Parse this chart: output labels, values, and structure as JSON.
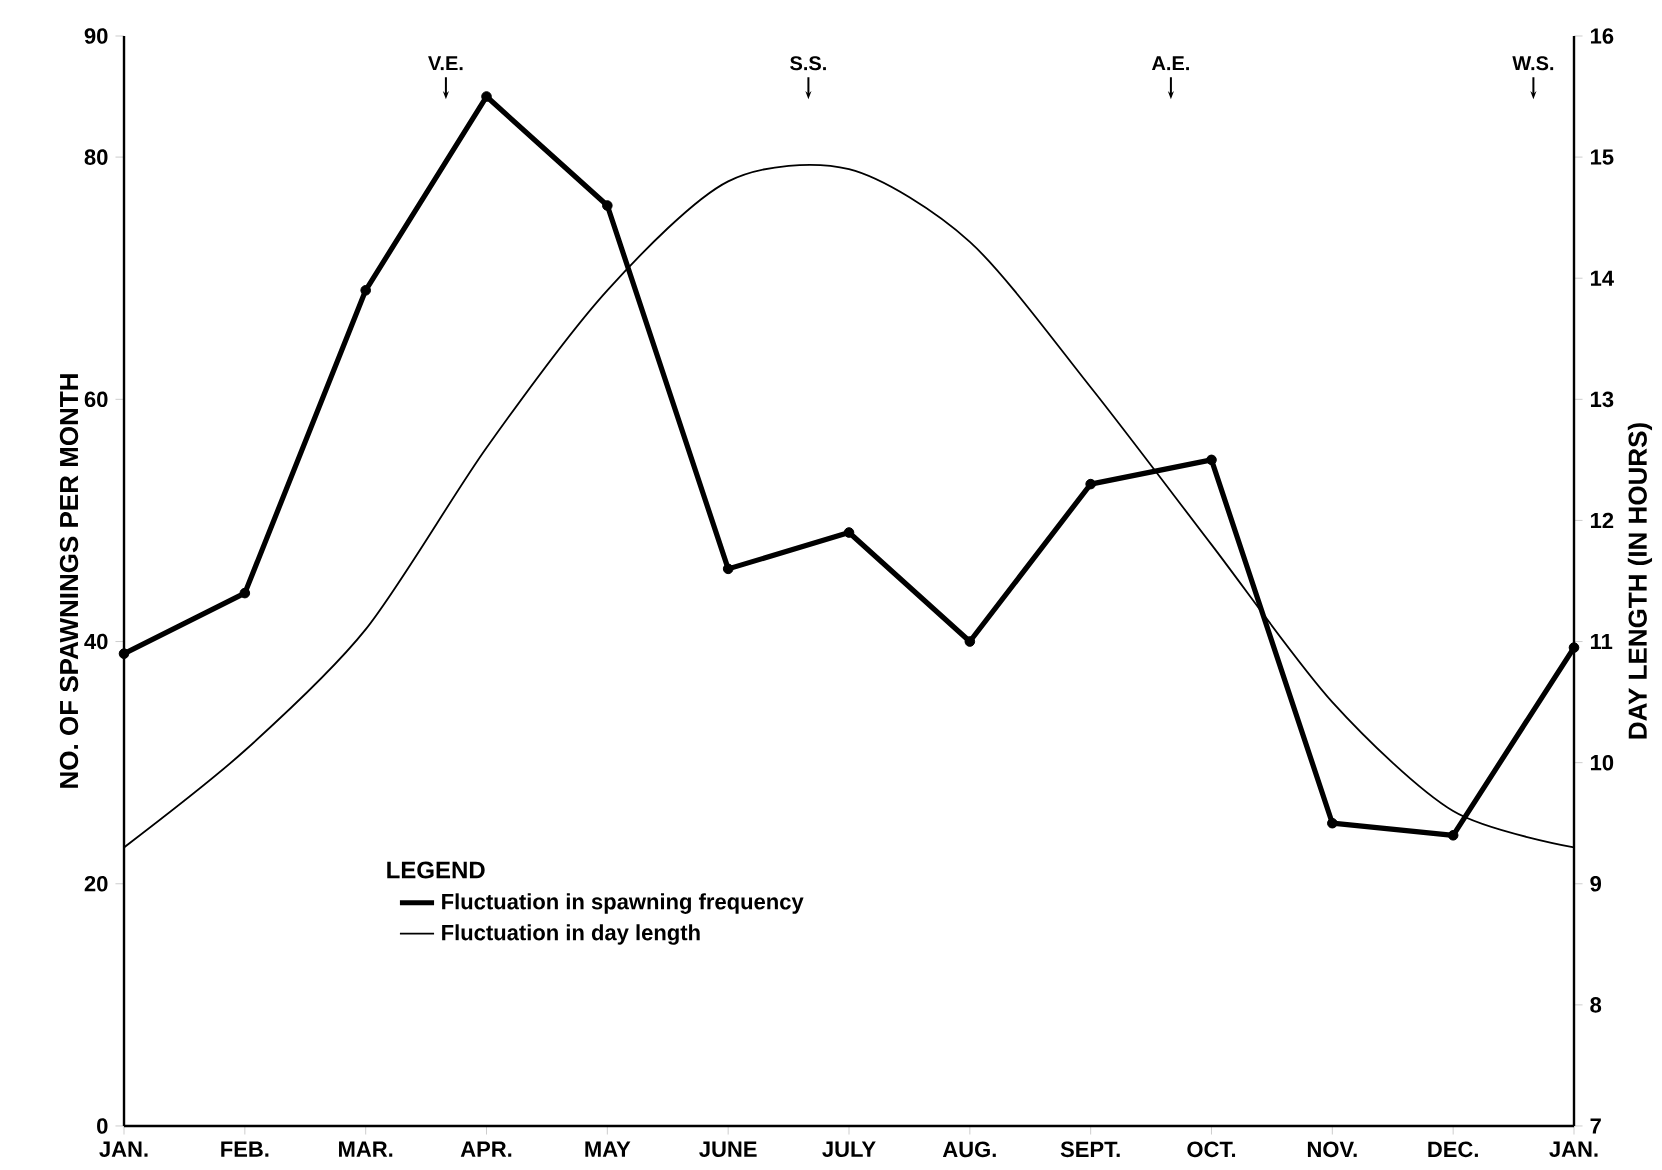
{
  "chart_data": {
    "type": "line",
    "categories": [
      "JAN.",
      "FEB.",
      "MAR.",
      "APR.",
      "MAY",
      "JUNE",
      "JULY",
      "AUG.",
      "SEPT.",
      "OCT.",
      "NOV.",
      "DEC.",
      "JAN."
    ],
    "ylim": [
      0,
      90
    ],
    "yticks": [
      0,
      20,
      40,
      60,
      80,
      90
    ],
    "y2lim": [
      7,
      16
    ],
    "y2ticks": [
      7,
      8,
      9,
      10,
      11,
      12,
      13,
      14,
      15,
      16
    ],
    "ylabel": "NO. OF SPAWNINGS PER MONTH",
    "y2label": "DAY LENGTH  (IN HOURS)",
    "legend_title": "LEGEND",
    "legend": "bottom",
    "grid": false,
    "line_style": "solid",
    "series": [
      {
        "name": "Fluctuation in spawning frequency",
        "color": "#000000",
        "marker": "circle",
        "values": [
          39,
          44,
          69,
          85,
          76,
          46,
          49,
          40,
          53,
          55,
          25,
          24,
          39.5
        ]
      },
      {
        "name": "Fluctuation in day length",
        "color": "#000000",
        "marker": "none",
        "axis": "y2",
        "values": [
          9.3,
          10.1,
          11.1,
          12.6,
          13.9,
          14.8,
          14.9,
          14.3,
          13.1,
          11.8,
          10.5,
          9.6,
          9.3
        ]
      }
    ],
    "annotations": [
      "V.E.",
      "S.S.",
      "A.E.",
      "W.S."
    ]
  }
}
